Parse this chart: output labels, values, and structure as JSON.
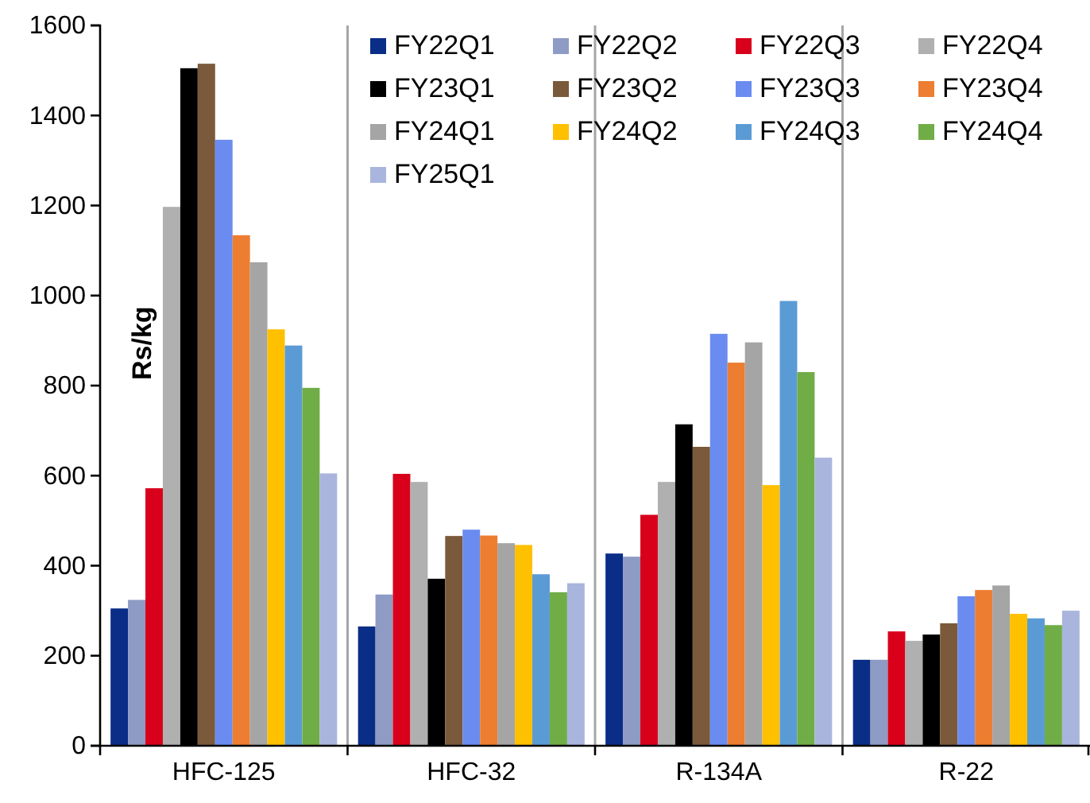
{
  "chart_data": {
    "type": "bar",
    "ylabel": "Rs/kg",
    "categories": [
      "HFC-125",
      "HFC-32",
      "R-134A",
      "R-22"
    ],
    "ylim": [
      0,
      1600
    ],
    "yticks": [
      0,
      200,
      400,
      600,
      800,
      1000,
      1200,
      1400,
      1600
    ],
    "grid": "x",
    "legend": "top right",
    "series": [
      {
        "name": "FY22Q1",
        "color": "#0a2d87",
        "values": [
          305,
          265,
          427,
          191
        ]
      },
      {
        "name": "FY22Q2",
        "color": "#8e9bc4",
        "values": [
          324,
          336,
          420,
          191
        ]
      },
      {
        "name": "FY22Q3",
        "color": "#d9001b",
        "values": [
          572,
          604,
          513,
          254
        ]
      },
      {
        "name": "FY22Q4",
        "color": "#b0b0b0",
        "values": [
          1197,
          586,
          586,
          233
        ]
      },
      {
        "name": "FY23Q1",
        "color": "#000000",
        "values": [
          1505,
          371,
          714,
          247
        ]
      },
      {
        "name": "FY23Q2",
        "color": "#7a5a3a",
        "values": [
          1515,
          466,
          664,
          272
        ]
      },
      {
        "name": "FY23Q3",
        "color": "#6a8cf0",
        "values": [
          1346,
          480,
          915,
          332
        ]
      },
      {
        "name": "FY23Q4",
        "color": "#ed7d31",
        "values": [
          1134,
          467,
          851,
          346
        ]
      },
      {
        "name": "FY24Q1",
        "color": "#a5a5a5",
        "values": [
          1074,
          450,
          896,
          356
        ]
      },
      {
        "name": "FY24Q2",
        "color": "#ffc000",
        "values": [
          925,
          446,
          579,
          293
        ]
      },
      {
        "name": "FY24Q3",
        "color": "#5b9bd5",
        "values": [
          889,
          381,
          988,
          283
        ]
      },
      {
        "name": "FY24Q4",
        "color": "#70ad47",
        "values": [
          795,
          341,
          830,
          268
        ]
      },
      {
        "name": "FY25Q1",
        "color": "#a9b5dc",
        "values": [
          605,
          361,
          640,
          300
        ]
      }
    ]
  }
}
